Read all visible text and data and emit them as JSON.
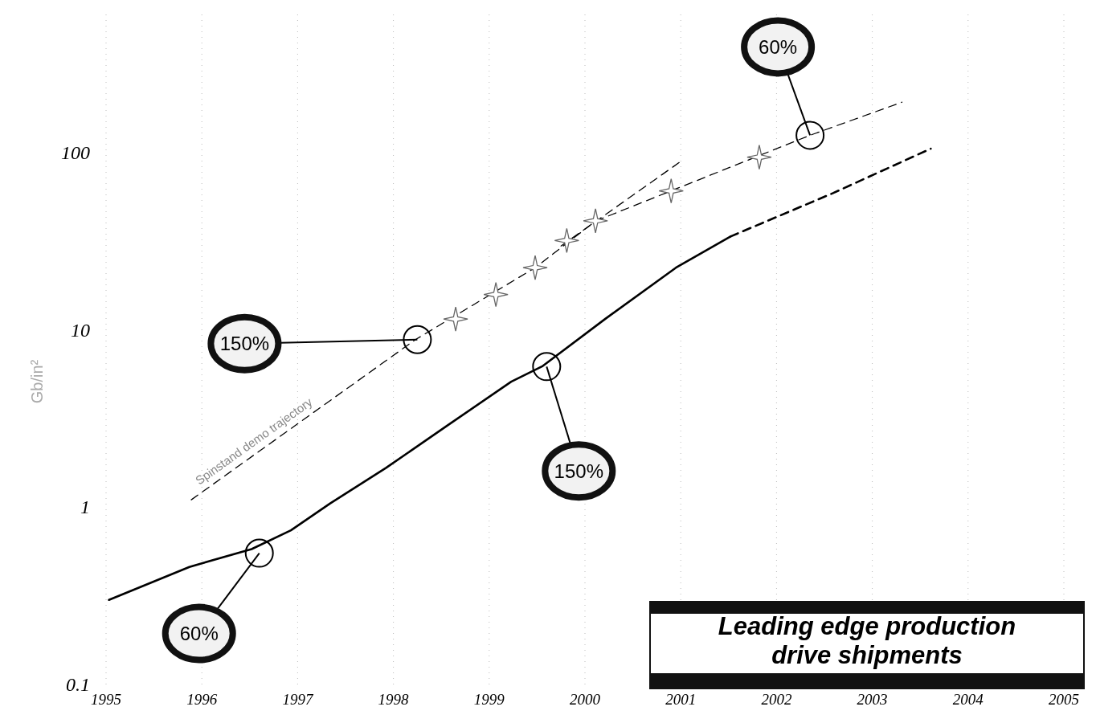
{
  "chart_data": {
    "type": "line",
    "ylabel": "Gb/in²",
    "log": "y",
    "grid": "x",
    "marker": "none",
    "xlim": [
      1995,
      2005
    ],
    "xticks": [
      1995,
      1996,
      1997,
      1998,
      1999,
      2000,
      2001,
      2002,
      2003,
      2004,
      2005
    ],
    "ylim": [
      0.1,
      600
    ],
    "yticks": [
      0.1,
      1,
      10,
      100
    ],
    "series": [
      {
        "color": "#000000",
        "line_style": "solid",
        "x": [
          1995.03,
          1995.87,
          1996.52,
          1996.93,
          1997.34,
          1997.92,
          1998.57,
          1999.23,
          1999.56,
          2000.21,
          2000.95,
          2001.52
        ],
        "values": [
          0.3,
          0.46,
          0.58,
          0.74,
          1.05,
          1.66,
          2.9,
          5.1,
          6.25,
          11.5,
          22.4,
          33.6
        ]
      },
      {
        "color": "#000000",
        "line_style": "dashed",
        "x": [
          2001.52,
          2002.59,
          2003.61
        ],
        "values": [
          33.6,
          59,
          105
        ]
      },
      {
        "name": "Spinstand demo trajectory",
        "color": "#000000",
        "line_style": "dashed",
        "x": [
          1995.89,
          1998.23,
          1999.48,
          2000.11,
          2002.35,
          2003.31
        ],
        "values": [
          1.1,
          8.8,
          22.4,
          41,
          125,
          192
        ]
      },
      {
        "color": "#000000",
        "line_style": "dashed",
        "x": [
          1999.75,
          2001.0
        ],
        "values": [
          29.7,
          89
        ]
      },
      {
        "type": "scatter",
        "marker": "star",
        "color": "#666666",
        "x": [
          1998.65,
          1999.07,
          1999.48,
          1999.81,
          2000.11,
          2000.9,
          2001.82
        ],
        "values": [
          11.5,
          15.8,
          22.4,
          31.9,
          41.2,
          60.7,
          94
        ]
      }
    ],
    "annotations": [
      {
        "text": "60%",
        "x": 1996.6,
        "y": 0.55
      },
      {
        "text": "150%",
        "x": 1998.25,
        "y": 8.8
      },
      {
        "text": "150%",
        "x": 1999.6,
        "y": 6.2
      },
      {
        "text": "60%",
        "x": 2002.35,
        "y": 125
      },
      "Leading edge production drive shipments"
    ]
  }
}
